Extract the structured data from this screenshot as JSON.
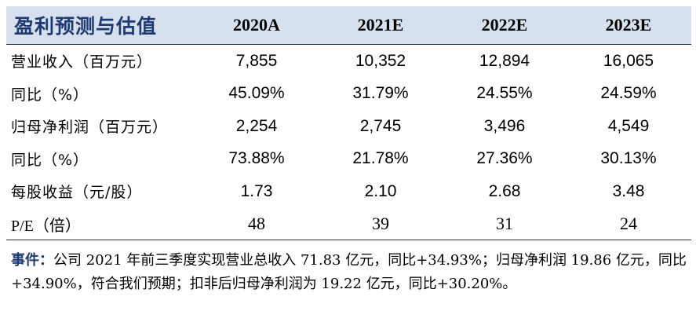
{
  "table": {
    "title": "盈利预测与估值",
    "years": [
      "2020A",
      "2021E",
      "2022E",
      "2023E"
    ],
    "rows": [
      {
        "label": "营业收入（百万元）",
        "values": [
          "7,855",
          "10,352",
          "12,894",
          "16,065"
        ]
      },
      {
        "label": "同比（%）",
        "values": [
          "45.09%",
          "31.79%",
          "24.55%",
          "24.59%"
        ]
      },
      {
        "label": "归母净利润（百万元）",
        "values": [
          "2,254",
          "2,745",
          "3,496",
          "4,549"
        ]
      },
      {
        "label": "同比（%）",
        "values": [
          "73.88%",
          "21.78%",
          "27.36%",
          "30.13%"
        ]
      },
      {
        "label": "每股收益（元/股）",
        "values": [
          "1.73",
          "2.10",
          "2.68",
          "3.48"
        ]
      },
      {
        "label": "P/E（倍）",
        "values": [
          "48",
          "39",
          "31",
          "24"
        ]
      }
    ]
  },
  "note": {
    "lead": "事件：",
    "text": "公司 2021 年前三季度实现营业总收入 71.83 亿元，同比+34.93%；归母净利润 19.86 亿元，同比+34.90%，符合我们预期；扣非后归母净利润为 19.22 亿元，同比+30.20%。"
  }
}
